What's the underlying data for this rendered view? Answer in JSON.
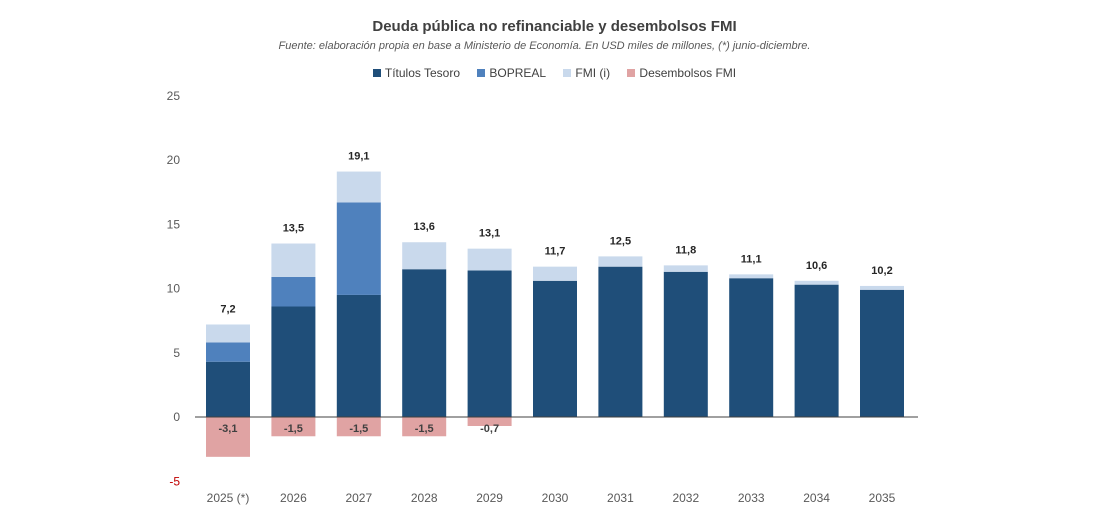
{
  "chart_data": {
    "type": "bar",
    "title": "Deuda pública no refinanciable y desembolsos FMI",
    "subtitle": "Fuente: elaboración propia en base a Ministerio de Economía. En USD miles de millones, (*) junio-diciembre.",
    "categories": [
      "2025 (*)",
      "2026",
      "2027",
      "2028",
      "2029",
      "2030",
      "2031",
      "2032",
      "2033",
      "2034",
      "2035"
    ],
    "series": [
      {
        "name": "Títulos Tesoro",
        "color": "#1f4e79",
        "values": [
          4.3,
          8.6,
          9.5,
          11.5,
          11.4,
          10.6,
          11.7,
          11.3,
          10.8,
          10.3,
          9.9
        ]
      },
      {
        "name": "BOPREAL",
        "color": "#4f81bd",
        "values": [
          1.5,
          2.3,
          7.2,
          0,
          0,
          0,
          0,
          0,
          0,
          0,
          0
        ]
      },
      {
        "name": "FMI (i)",
        "color": "#c9d9ec",
        "values": [
          1.4,
          2.6,
          2.4,
          2.1,
          1.7,
          1.1,
          0.8,
          0.5,
          0.3,
          0.3,
          0.3
        ]
      },
      {
        "name": "Desembolsos FMI",
        "color": "#e0a3a3",
        "values": [
          -3.1,
          -1.5,
          -1.5,
          -1.5,
          -0.7,
          0,
          0,
          0,
          0,
          0,
          0
        ]
      }
    ],
    "totals": [
      "7,2",
      "13,5",
      "19,1",
      "13,6",
      "13,1",
      "11,7",
      "12,5",
      "11,8",
      "11,1",
      "10,6",
      "10,2"
    ],
    "negative_labels": [
      "-3,1",
      "-1,5",
      "-1,5",
      "-1,5",
      "-0,7",
      "",
      "",
      "",
      "",
      "",
      ""
    ],
    "yticks": [
      25,
      20,
      15,
      10,
      5,
      0,
      -5
    ],
    "ylim": [
      -5,
      25
    ],
    "negative_tick_color": "#c00000",
    "grid": false,
    "legend_position": "top"
  }
}
